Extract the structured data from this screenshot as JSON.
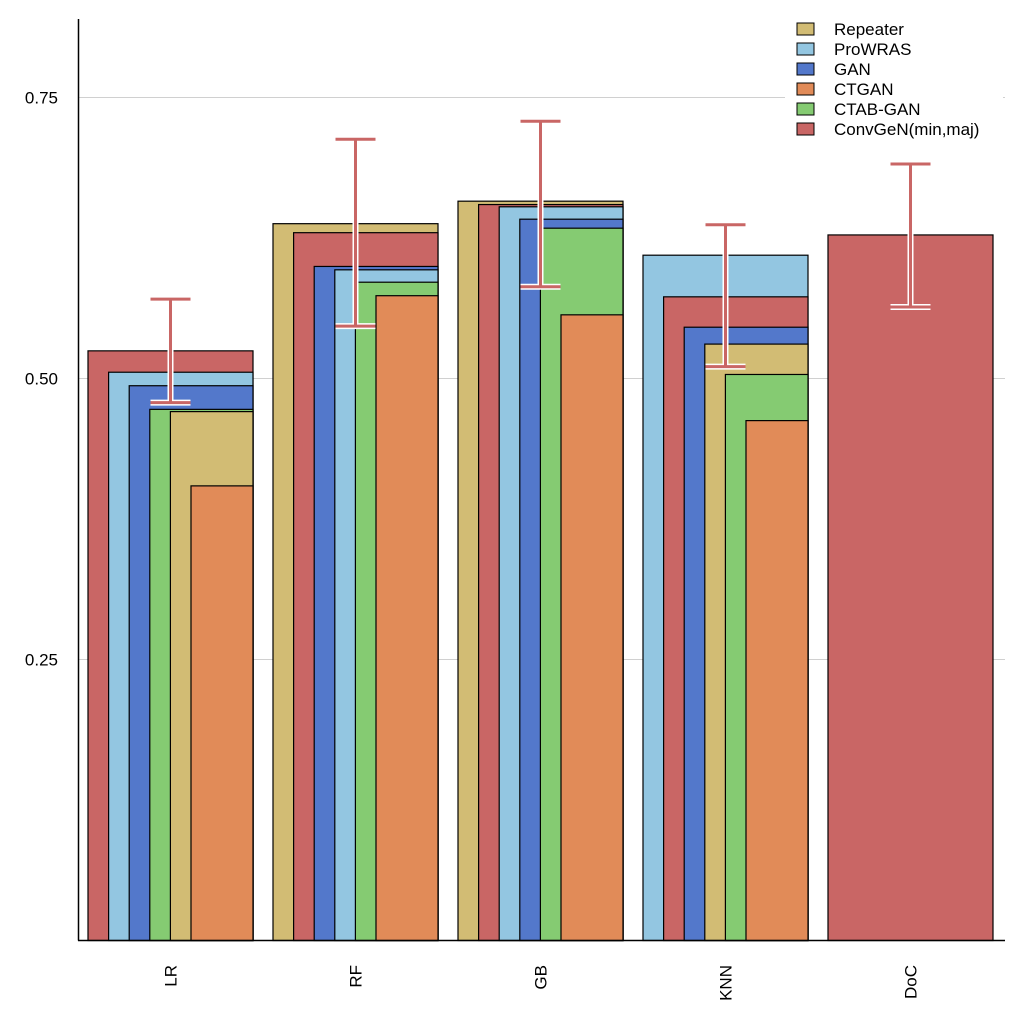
{
  "chart_data": {
    "type": "bar",
    "title": "",
    "xlabel": "",
    "ylabel": "",
    "ylim": [
      0,
      0.82
    ],
    "yticks": [
      0.25,
      0.5,
      0.75
    ],
    "ytick_labels": [
      "0.25",
      "0.50",
      "0.75"
    ],
    "grid": "horizontal",
    "legend_position": "top-right",
    "categories": [
      "LR",
      "RF",
      "GB",
      "KNN",
      "DoC"
    ],
    "series": [
      {
        "name": "Repeater",
        "color": "#d2bc74",
        "values": [
          0.47,
          0.637,
          0.657,
          0.53,
          null
        ]
      },
      {
        "name": "ProWRAS",
        "color": "#93c6e1",
        "values": [
          0.505,
          0.596,
          0.652,
          0.609,
          null
        ]
      },
      {
        "name": "GAN",
        "color": "#5378cb",
        "values": [
          0.493,
          0.599,
          0.641,
          0.545,
          null
        ]
      },
      {
        "name": "CTGAN",
        "color": "#e18b58",
        "values": [
          0.404,
          0.573,
          0.556,
          0.462,
          null
        ]
      },
      {
        "name": "CTAB-GAN",
        "color": "#85cb72",
        "values": [
          0.472,
          0.585,
          0.633,
          0.503,
          null
        ]
      },
      {
        "name": "ConvGeN(min,maj)",
        "color": "#c96665",
        "values": [
          0.524,
          0.629,
          0.654,
          0.572,
          0.627
        ]
      }
    ],
    "error_bars": {
      "series": "ConvGeN(min,maj)",
      "color": "#c96665",
      "ranges": [
        [
          0.478,
          0.57
        ],
        [
          0.546,
          0.712
        ],
        [
          0.581,
          0.728
        ],
        [
          0.51,
          0.636
        ],
        [
          0.563,
          0.69
        ]
      ]
    },
    "bar_style": "overlapping-nested, sorted descending, aligned right"
  }
}
